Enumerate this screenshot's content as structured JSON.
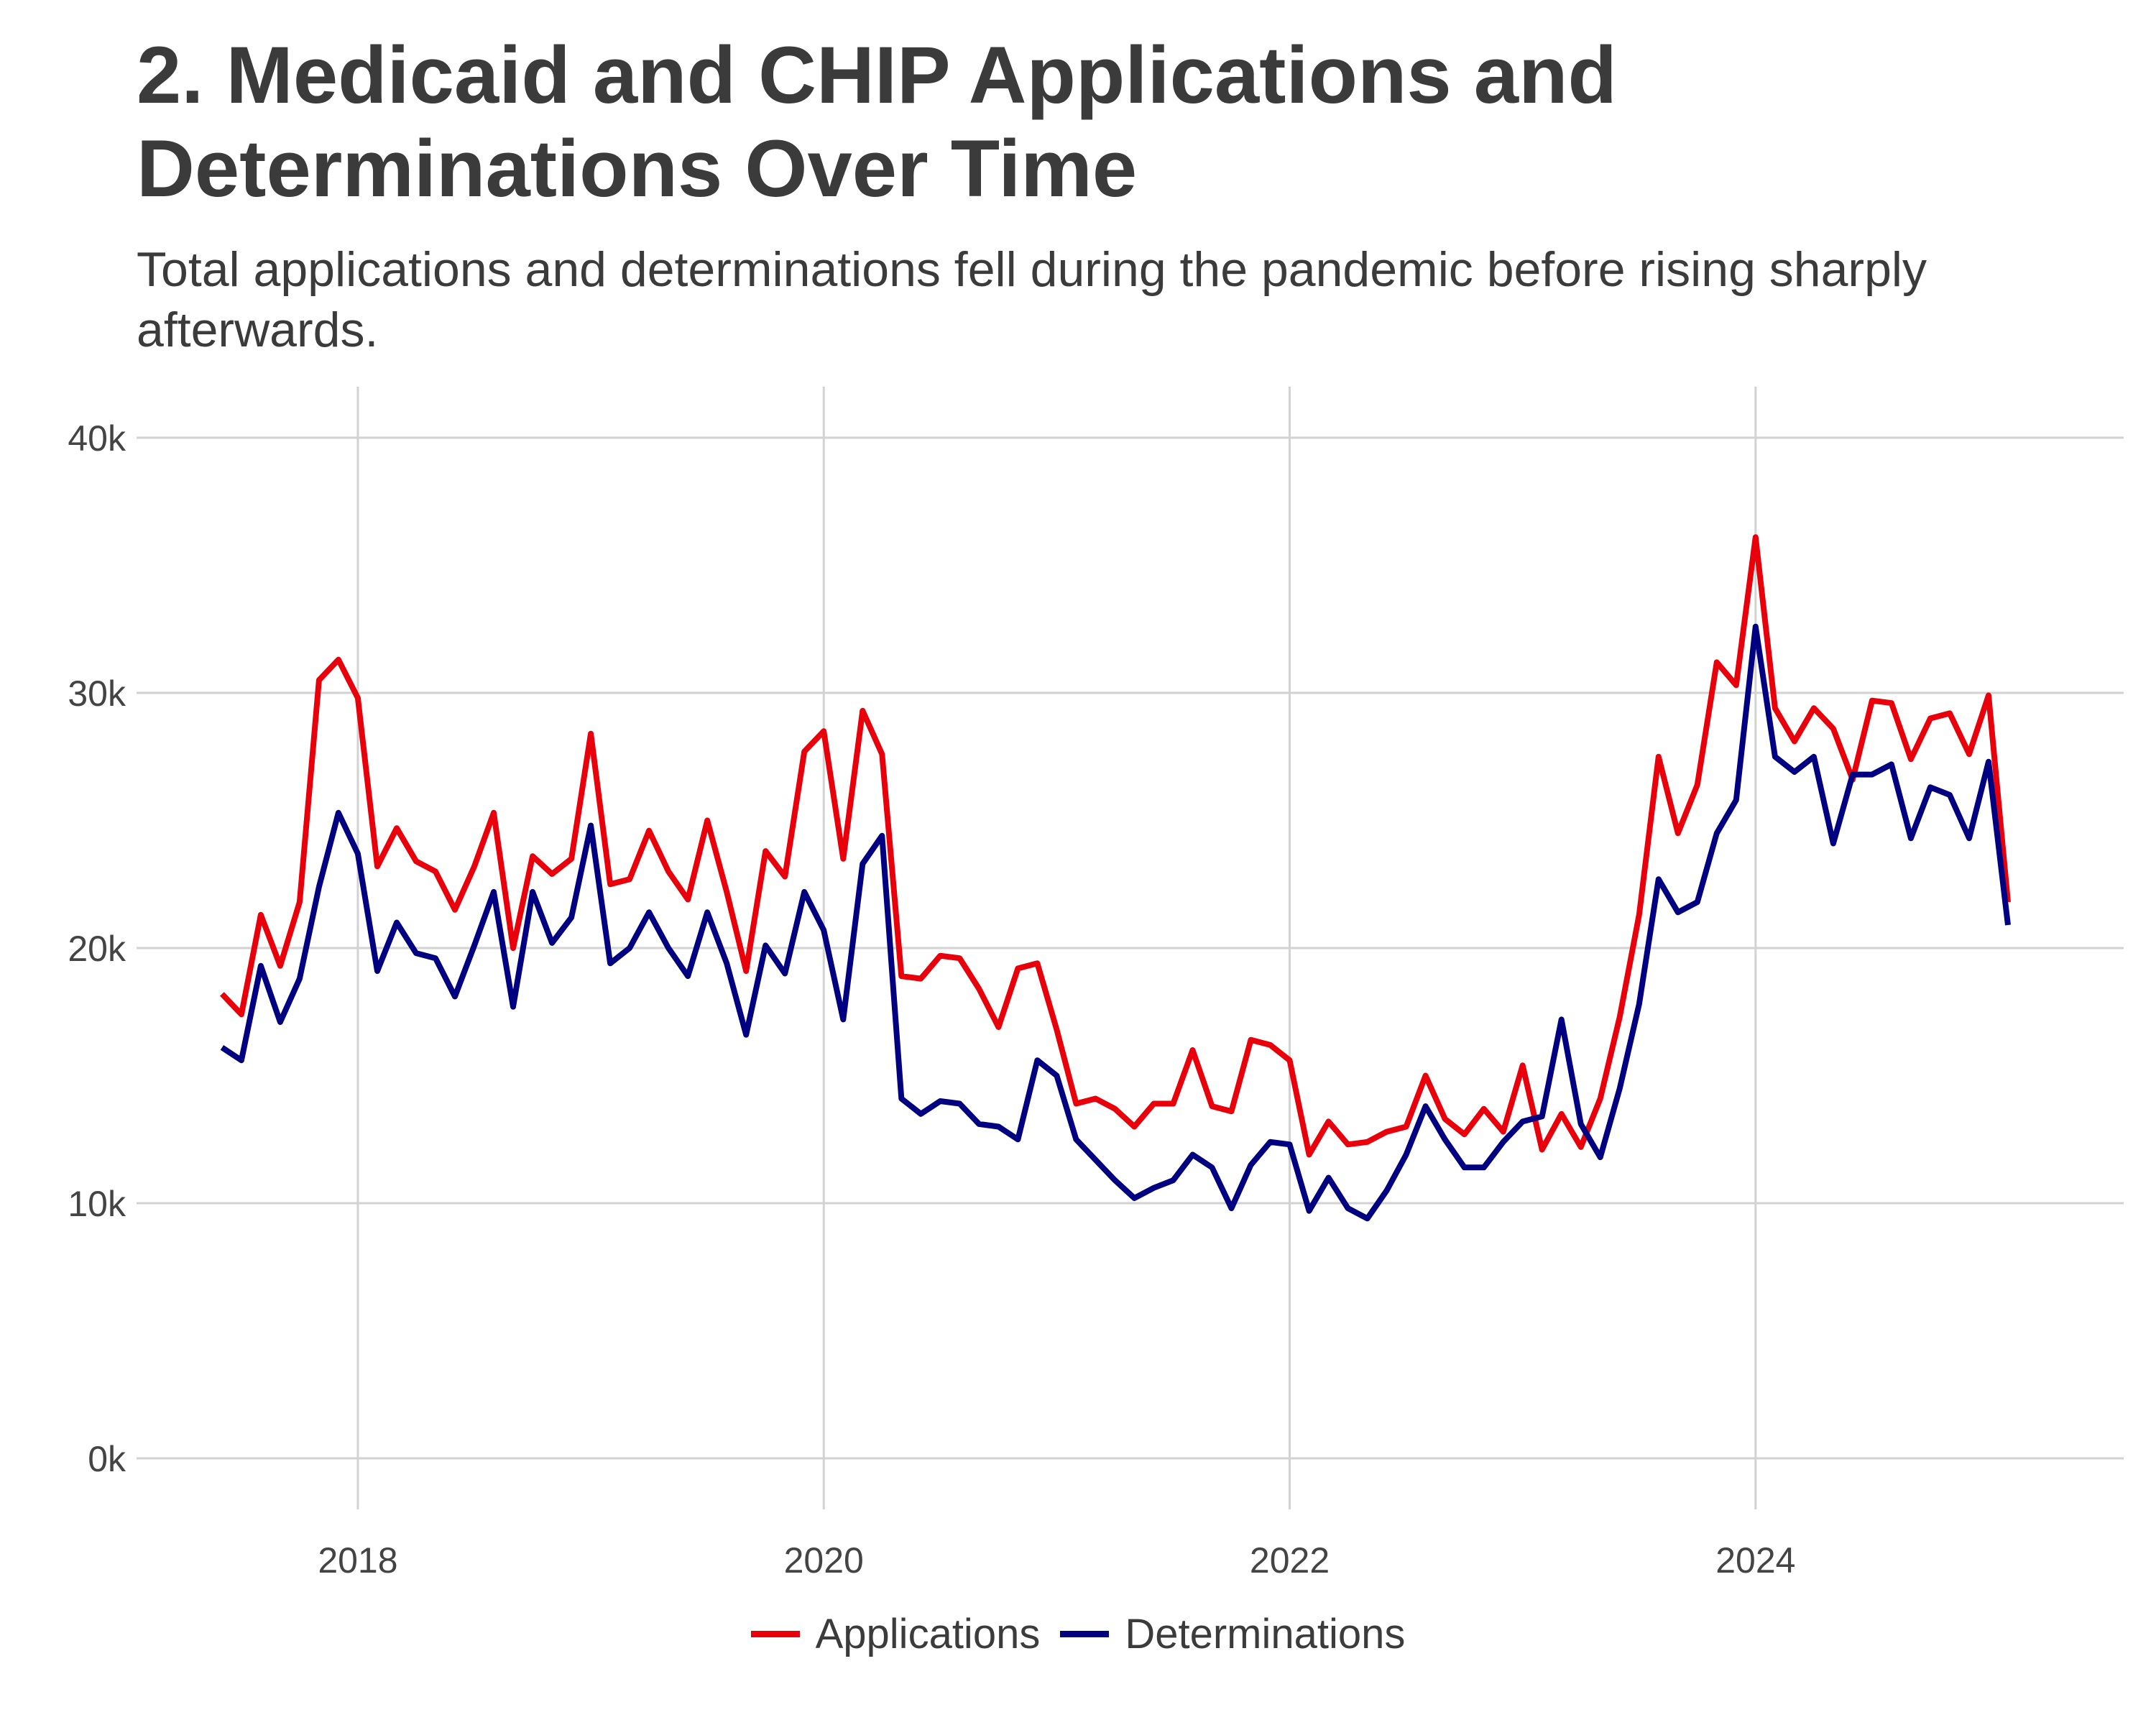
{
  "chart_data": {
    "type": "line",
    "title": "2. Medicaid and CHIP Applications and Determinations Over Time",
    "subtitle": "Total applications and determinations fell during the pandemic before rising sharply afterwards.",
    "xlabel": "",
    "ylabel": "",
    "xlim": [
      2017.05,
      2025.58
    ],
    "ylim": [
      -2000,
      42000
    ],
    "x_ticks": [
      2018,
      2020,
      2022,
      2024
    ],
    "x_tick_labels": [
      "2018",
      "2020",
      "2022",
      "2024"
    ],
    "y_ticks": [
      0,
      10000,
      20000,
      30000,
      40000
    ],
    "y_tick_labels": [
      "0k",
      "10k",
      "20k",
      "30k",
      "40k"
    ],
    "grid": true,
    "legend_position": "bottom",
    "x_start": "2017-06",
    "x_step": "1 month",
    "series": [
      {
        "name": "Applications",
        "color": "#e8000b",
        "values": [
          18200,
          17400,
          21300,
          19300,
          21800,
          30500,
          31300,
          29800,
          23200,
          24700,
          23400,
          23000,
          21500,
          23200,
          25300,
          20000,
          23600,
          22900,
          23500,
          28400,
          22500,
          22700,
          24600,
          23000,
          21900,
          25000,
          22200,
          19100,
          23800,
          22800,
          27700,
          28500,
          23500,
          29300,
          27600,
          18900,
          18800,
          19700,
          19600,
          18400,
          16900,
          19200,
          19400,
          16800,
          13900,
          14100,
          13700,
          13000,
          13900,
          13900,
          16000,
          13800,
          13600,
          16400,
          16200,
          15600,
          11900,
          13200,
          12300,
          12400,
          12800,
          13000,
          15000,
          13300,
          12700,
          13700,
          12800,
          15400,
          12100,
          13500,
          12200,
          14100,
          17300,
          21300,
          27500,
          24500,
          26400,
          31200,
          30300,
          36100,
          29400,
          28100,
          29400,
          28600,
          26600,
          29700,
          29600,
          27400,
          29000,
          29200,
          27600,
          29900,
          21800
        ]
      },
      {
        "name": "Determinations",
        "color": "#000080",
        "values": [
          16100,
          15600,
          19300,
          17100,
          18800,
          22400,
          25300,
          23700,
          19100,
          21000,
          19800,
          19600,
          18100,
          20100,
          22200,
          17700,
          22200,
          20200,
          21200,
          24800,
          19400,
          20000,
          21400,
          20000,
          18900,
          21400,
          19400,
          16600,
          20100,
          19000,
          22200,
          20700,
          17200,
          23300,
          24400,
          14100,
          13500,
          14000,
          13900,
          13100,
          13000,
          12500,
          15600,
          15000,
          12500,
          11700,
          10900,
          10200,
          10600,
          10900,
          11900,
          11400,
          9800,
          11500,
          12400,
          12300,
          9700,
          11000,
          9800,
          9400,
          10500,
          11900,
          13800,
          12500,
          11400,
          11400,
          12400,
          13200,
          13400,
          17200,
          13100,
          11800,
          14500,
          17800,
          22700,
          21400,
          21800,
          24500,
          25800,
          32600,
          27500,
          26900,
          27500,
          24100,
          26800,
          26800,
          27200,
          24300,
          26300,
          26000,
          24300,
          27300,
          20900
        ]
      }
    ]
  }
}
